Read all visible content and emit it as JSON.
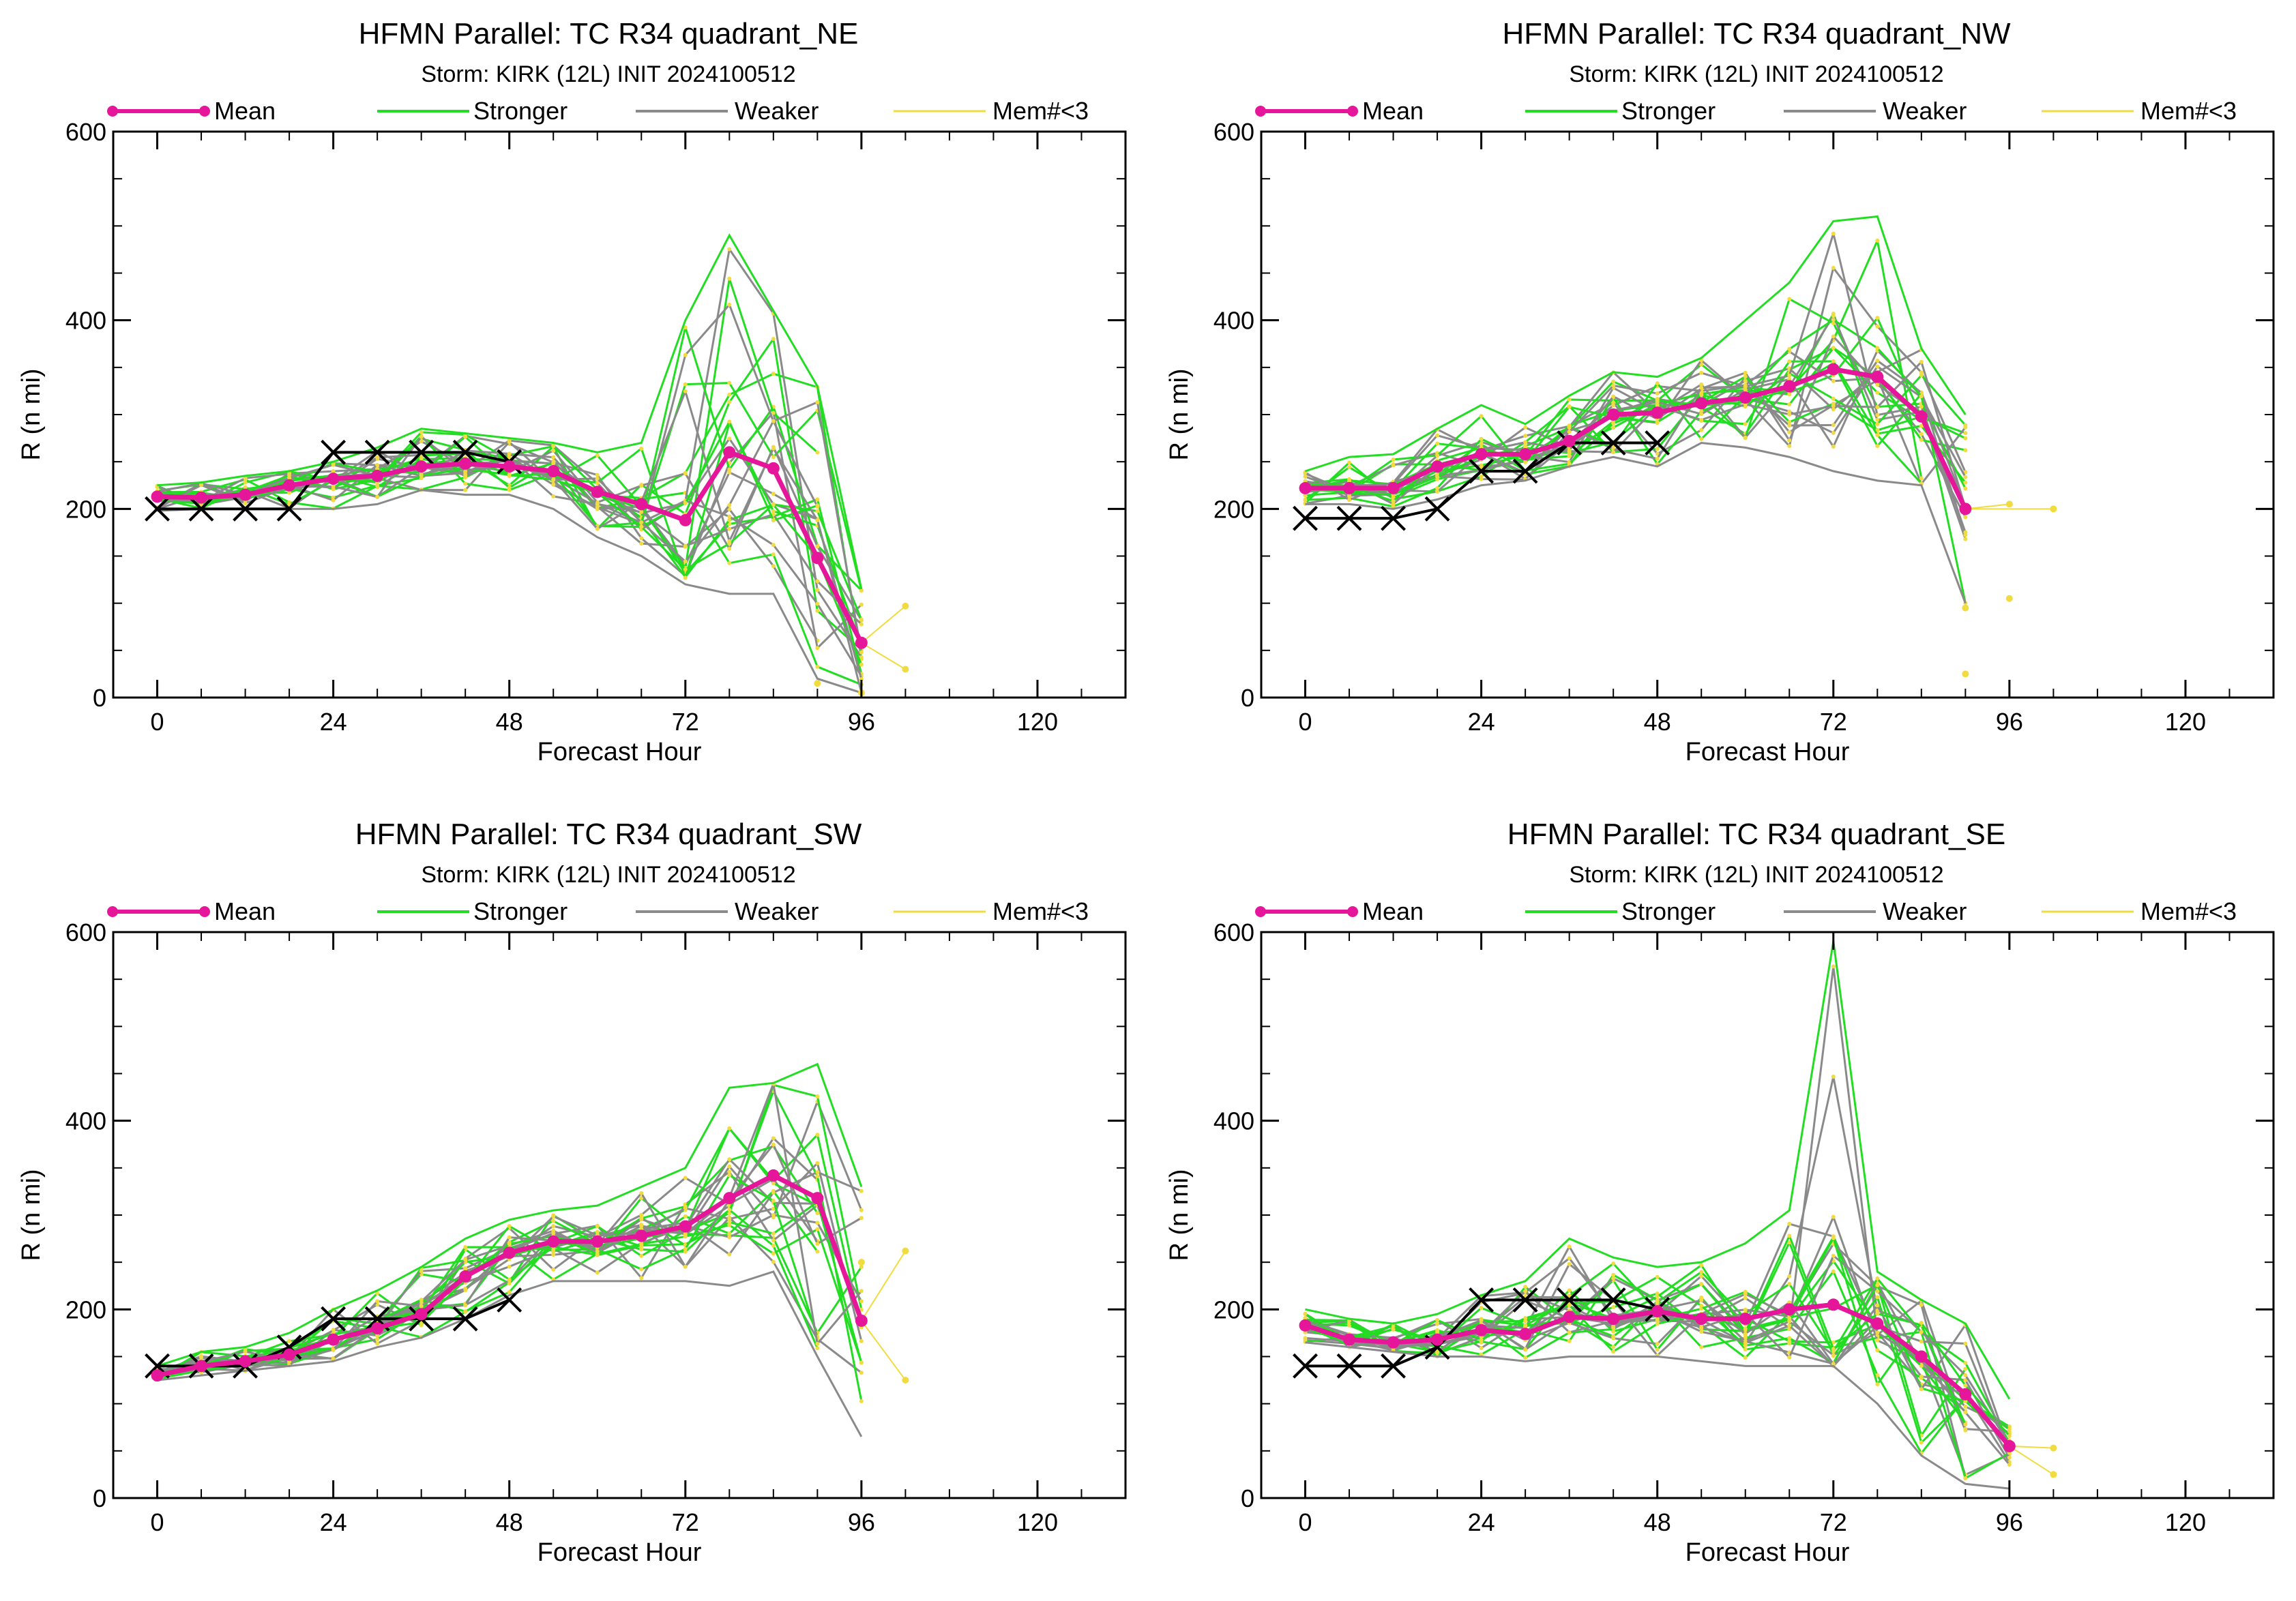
{
  "page": {
    "x_axis_label": "Forecast Hour",
    "y_axis_label": "R (n mi)"
  },
  "legend": {
    "mean": "Mean",
    "stronger": "Stronger",
    "weaker": "Weaker",
    "small": "Mem#<3",
    "colors": {
      "mean": "#e6169a",
      "stronger": "#22dd22",
      "weaker": "#8a8a8a",
      "small": "#f0dc40",
      "observed": "#000000"
    }
  },
  "chart_data": [
    {
      "type": "line",
      "title": "HFMN Parallel: TC  R34 quadrant_NE",
      "subtitle": "Storm: KIRK (12L) INIT 2024100512",
      "xlabel": "Forecast Hour",
      "ylabel": "R (n mi)",
      "xlim": [
        -6,
        132
      ],
      "ylim": [
        0,
        600
      ],
      "xticks": [
        0,
        24,
        48,
        72,
        96,
        120
      ],
      "yticks": [
        0,
        200,
        400,
        600
      ],
      "grid": false,
      "legend_position": "top",
      "mean": {
        "name": "Mean",
        "x": [
          0,
          6,
          12,
          18,
          24,
          30,
          36,
          42,
          48,
          54,
          60,
          66,
          72,
          78,
          84,
          90,
          96
        ],
        "y": [
          213,
          212,
          215,
          225,
          232,
          235,
          245,
          248,
          245,
          240,
          218,
          205,
          188,
          260,
          243,
          148,
          58
        ]
      },
      "observed": {
        "x": [
          0,
          6,
          12,
          18,
          24,
          30,
          36,
          42,
          48
        ],
        "y": [
          200,
          200,
          200,
          200,
          260,
          260,
          260,
          260,
          250
        ]
      },
      "spread": {
        "x": [
          0,
          6,
          12,
          18,
          24,
          30,
          36,
          42,
          48,
          54,
          60,
          66,
          72,
          78,
          84,
          90,
          96
        ],
        "low": [
          198,
          200,
          200,
          200,
          200,
          205,
          220,
          215,
          215,
          200,
          170,
          150,
          120,
          110,
          110,
          20,
          5
        ],
        "high": [
          225,
          228,
          235,
          240,
          250,
          265,
          285,
          280,
          275,
          270,
          260,
          270,
          400,
          490,
          410,
          330,
          115
        ]
      },
      "small_points": [
        {
          "x": 102,
          "y": 97
        },
        {
          "x": 102,
          "y": 30
        },
        {
          "x": 96,
          "y": 5
        },
        {
          "x": 90,
          "y": 15
        }
      ]
    },
    {
      "type": "line",
      "title": "HFMN Parallel: TC  R34 quadrant_NW",
      "subtitle": "Storm: KIRK (12L) INIT 2024100512",
      "xlabel": "Forecast Hour",
      "ylabel": "R (n mi)",
      "xlim": [
        -6,
        132
      ],
      "ylim": [
        0,
        600
      ],
      "xticks": [
        0,
        24,
        48,
        72,
        96,
        120
      ],
      "yticks": [
        0,
        200,
        400,
        600
      ],
      "grid": false,
      "legend_position": "top",
      "mean": {
        "name": "Mean",
        "x": [
          0,
          6,
          12,
          18,
          24,
          30,
          36,
          42,
          48,
          54,
          60,
          66,
          72,
          78,
          84,
          90
        ],
        "y": [
          222,
          222,
          222,
          245,
          258,
          258,
          272,
          300,
          302,
          312,
          318,
          330,
          348,
          340,
          298,
          200
        ]
      },
      "observed": {
        "x": [
          0,
          6,
          12,
          18,
          24,
          30,
          36,
          42,
          48
        ],
        "y": [
          190,
          190,
          190,
          200,
          240,
          240,
          270,
          270,
          270
        ]
      },
      "spread": {
        "x": [
          0,
          6,
          12,
          18,
          24,
          30,
          36,
          42,
          48,
          54,
          60,
          66,
          72,
          78,
          84,
          90
        ],
        "low": [
          205,
          205,
          200,
          210,
          225,
          230,
          245,
          255,
          245,
          270,
          265,
          255,
          240,
          230,
          225,
          100
        ],
        "high": [
          240,
          255,
          258,
          285,
          310,
          290,
          320,
          345,
          340,
          360,
          400,
          440,
          505,
          510,
          370,
          300
        ]
      },
      "small_points": [
        {
          "x": 102,
          "y": 200
        },
        {
          "x": 96,
          "y": 205
        },
        {
          "x": 96,
          "y": 105
        },
        {
          "x": 90,
          "y": 95
        },
        {
          "x": 90,
          "y": 25
        }
      ]
    },
    {
      "type": "line",
      "title": "HFMN Parallel: TC  R34 quadrant_SW",
      "subtitle": "Storm: KIRK (12L) INIT 2024100512",
      "xlabel": "Forecast Hour",
      "ylabel": "R (n mi)",
      "xlim": [
        -6,
        132
      ],
      "ylim": [
        0,
        600
      ],
      "xticks": [
        0,
        24,
        48,
        72,
        96,
        120
      ],
      "yticks": [
        0,
        200,
        400,
        600
      ],
      "grid": false,
      "legend_position": "top",
      "mean": {
        "name": "Mean",
        "x": [
          0,
          6,
          12,
          18,
          24,
          30,
          36,
          42,
          48,
          54,
          60,
          66,
          72,
          78,
          84,
          90,
          96
        ],
        "y": [
          130,
          140,
          145,
          152,
          168,
          180,
          195,
          235,
          260,
          272,
          272,
          278,
          288,
          318,
          342,
          318,
          188
        ]
      },
      "observed": {
        "x": [
          0,
          6,
          12,
          18,
          24,
          30,
          36,
          42,
          48
        ],
        "y": [
          140,
          140,
          140,
          160,
          190,
          190,
          190,
          190,
          210
        ]
      },
      "spread": {
        "x": [
          0,
          6,
          12,
          18,
          24,
          30,
          36,
          42,
          48,
          54,
          60,
          66,
          72,
          78,
          84,
          90,
          96
        ],
        "low": [
          125,
          130,
          135,
          140,
          145,
          160,
          170,
          190,
          215,
          230,
          230,
          230,
          230,
          225,
          240,
          150,
          65
        ],
        "high": [
          140,
          155,
          160,
          175,
          200,
          220,
          245,
          275,
          295,
          305,
          310,
          330,
          350,
          435,
          440,
          460,
          330
        ]
      },
      "small_points": [
        {
          "x": 102,
          "y": 262
        },
        {
          "x": 102,
          "y": 125
        },
        {
          "x": 96,
          "y": 250
        }
      ]
    },
    {
      "type": "line",
      "title": "HFMN Parallel: TC  R34 quadrant_SE",
      "subtitle": "Storm: KIRK (12L) INIT 2024100512",
      "xlabel": "Forecast Hour",
      "ylabel": "R (n mi)",
      "xlim": [
        -6,
        132
      ],
      "ylim": [
        0,
        600
      ],
      "xticks": [
        0,
        24,
        48,
        72,
        96,
        120
      ],
      "yticks": [
        0,
        200,
        400,
        600
      ],
      "grid": false,
      "legend_position": "top",
      "mean": {
        "name": "Mean",
        "x": [
          0,
          6,
          12,
          18,
          24,
          30,
          36,
          42,
          48,
          54,
          60,
          66,
          72,
          78,
          84,
          90,
          96
        ],
        "y": [
          183,
          168,
          165,
          168,
          178,
          174,
          192,
          190,
          198,
          190,
          190,
          200,
          205,
          185,
          150,
          110,
          55
        ]
      },
      "observed": {
        "x": [
          0,
          6,
          12,
          18,
          24,
          30,
          36,
          42,
          48
        ],
        "y": [
          140,
          140,
          140,
          160,
          210,
          210,
          210,
          210,
          200
        ]
      },
      "spread": {
        "x": [
          0,
          6,
          12,
          18,
          24,
          30,
          36,
          42,
          48,
          54,
          60,
          66,
          72,
          78,
          84,
          90,
          96
        ],
        "low": [
          165,
          160,
          155,
          150,
          150,
          145,
          150,
          150,
          150,
          145,
          140,
          140,
          140,
          100,
          45,
          15,
          10
        ],
        "high": [
          200,
          190,
          185,
          195,
          215,
          230,
          275,
          255,
          245,
          250,
          270,
          305,
          590,
          240,
          210,
          185,
          105
        ]
      },
      "small_points": [
        {
          "x": 102,
          "y": 53
        },
        {
          "x": 102,
          "y": 25
        }
      ]
    }
  ]
}
